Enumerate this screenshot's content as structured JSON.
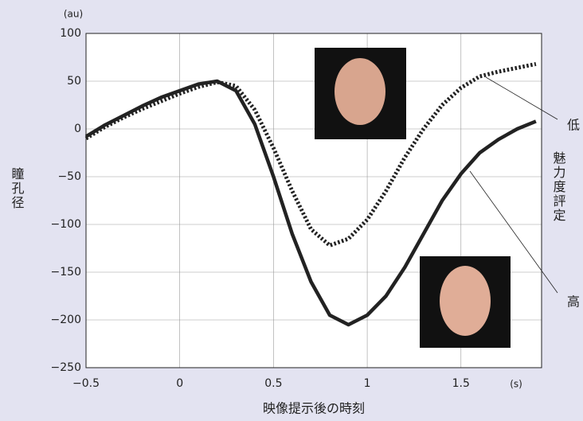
{
  "chart_data": {
    "type": "line",
    "x_label": "映像提示後の時刻",
    "x_unit": "(s)",
    "y_label": "瞳孔径",
    "y_unit": "(au)",
    "legend_title": "魅力度評定",
    "x": [
      -0.5,
      -0.4,
      -0.3,
      -0.2,
      -0.1,
      0,
      0.1,
      0.2,
      0.3,
      0.4,
      0.5,
      0.6,
      0.7,
      0.8,
      0.9,
      1.0,
      1.1,
      1.2,
      1.3,
      1.4,
      1.5,
      1.6,
      1.7,
      1.8,
      1.9
    ],
    "series": [
      {
        "name": "低",
        "color": "#222222",
        "dash": true,
        "values": [
          -10,
          2,
          12,
          21,
          29,
          37,
          44,
          49,
          45,
          20,
          -20,
          -65,
          -105,
          -122,
          -115,
          -95,
          -65,
          -30,
          0,
          25,
          43,
          55,
          60,
          64,
          68
        ]
      },
      {
        "name": "高",
        "color": "#222222",
        "dash": false,
        "values": [
          -8,
          4,
          14,
          24,
          33,
          40,
          47,
          50,
          40,
          5,
          -50,
          -110,
          -160,
          -195,
          -205,
          -195,
          -175,
          -145,
          -110,
          -75,
          -47,
          -25,
          -11,
          0,
          8
        ]
      }
    ],
    "xlim": [
      -0.5,
      1.93
    ],
    "ylim": [
      -250,
      100
    ],
    "xticks": [
      {
        "value": -0.5,
        "label": "−0.5"
      },
      0,
      0.5,
      1,
      1.5
    ],
    "yticks": [
      {
        "value": -250,
        "label": "−250"
      },
      {
        "value": -200,
        "label": "−200"
      },
      {
        "value": -150,
        "label": "−150"
      },
      {
        "value": -100,
        "label": "−100"
      },
      {
        "value": -50,
        "label": "−50"
      },
      0,
      50,
      100
    ],
    "grid": true
  }
}
